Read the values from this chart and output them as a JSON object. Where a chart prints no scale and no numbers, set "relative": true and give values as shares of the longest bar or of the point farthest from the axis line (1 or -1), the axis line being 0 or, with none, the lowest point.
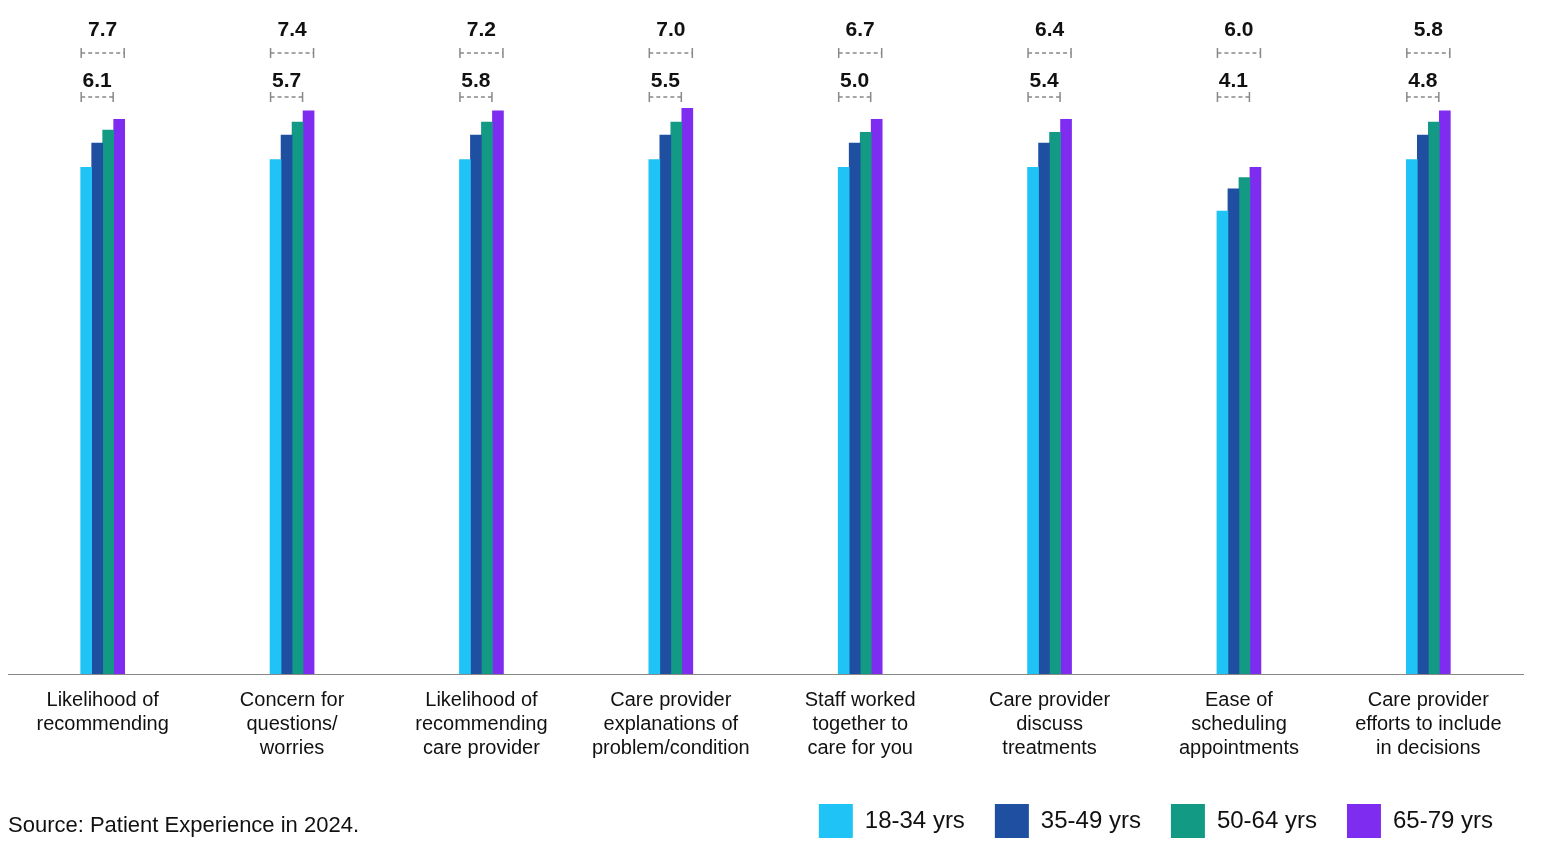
{
  "chart_data": {
    "type": "bar",
    "relative": true,
    "categories": [
      "Likelihood of\nrecommending",
      "Concern for\nquestions/\nworries",
      "Likelihood of\nrecommending\ncare provider",
      "Care provider\nexplanations of\nproblem/condition",
      "Staff worked\ntogether to\ncare for you",
      "Care provider\ndiscuss\ntreatments",
      "Ease of\nscheduling\nappointments",
      "Care provider\nefforts to include\nin decisions"
    ],
    "series": [
      {
        "name": "18-34 yrs",
        "color": "#1fc3f5",
        "values": [
          0.895,
          0.909,
          0.909,
          0.909,
          0.895,
          0.895,
          0.818,
          0.909
        ]
      },
      {
        "name": "35-49 yrs",
        "color": "#1f4fa0",
        "values": [
          0.938,
          0.952,
          0.952,
          0.952,
          0.938,
          0.938,
          0.857,
          0.952
        ]
      },
      {
        "name": "50-64 yrs",
        "color": "#129a85",
        "values": [
          0.961,
          0.975,
          0.975,
          0.975,
          0.957,
          0.957,
          0.877,
          0.975
        ]
      },
      {
        "name": "65-79 yrs",
        "color": "#7e2cf0",
        "values": [
          0.98,
          0.995,
          0.995,
          1,
          0.98,
          0.98,
          0.895,
          0.995
        ]
      }
    ],
    "annotations": [
      "7.7",
      "6.1",
      "7.4",
      "5.7",
      "7.2",
      "5.8",
      "7.0",
      "5.5",
      "6.7",
      "5.0",
      "6.4",
      "5.4",
      "6.0",
      "4.1",
      "5.8",
      "4.8",
      "Source: Patient Experience in 2024."
    ],
    "legend": "bottom right",
    "grid": false
  }
}
